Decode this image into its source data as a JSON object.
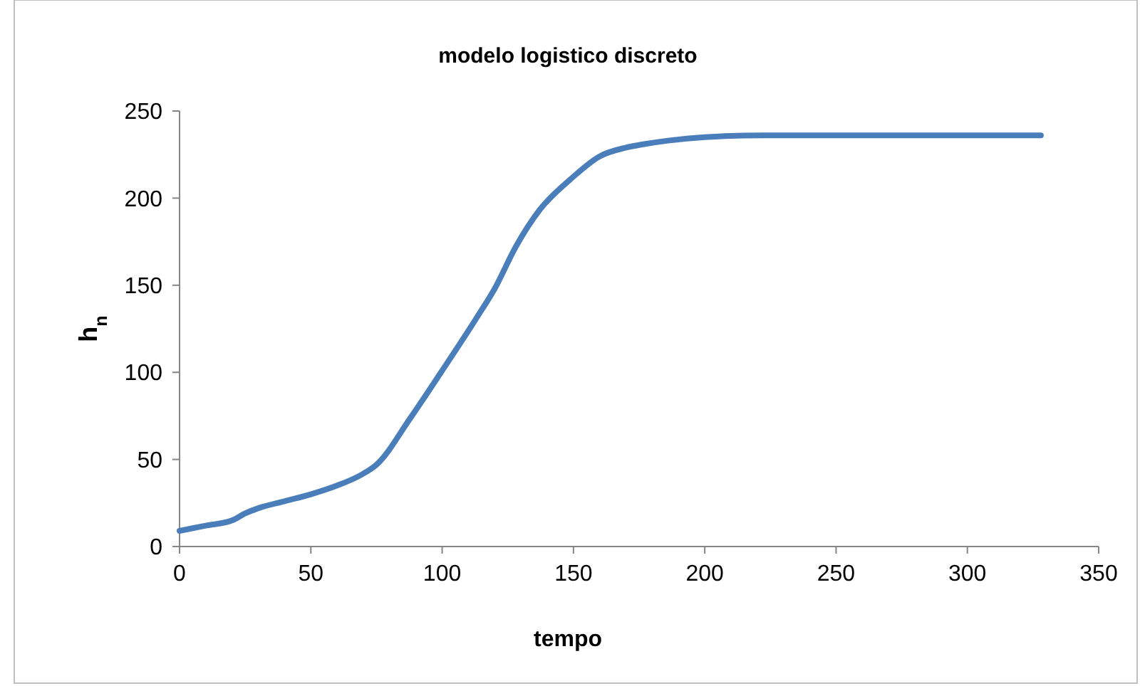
{
  "chart_data": {
    "type": "line",
    "title": "modelo logistico discreto",
    "xlabel": "tempo",
    "ylabel": "h$_{n}$",
    "x": [
      0,
      10,
      20,
      25,
      30,
      40,
      50,
      60,
      69,
      75,
      88,
      100,
      113,
      120,
      128,
      137,
      149,
      160,
      170,
      177,
      186,
      200,
      222,
      250,
      290,
      328
    ],
    "series": [
      {
        "color": "#4a7ebb",
        "values": [
          9,
          12,
          15,
          19,
          22,
          26,
          30,
          35,
          41,
          47,
          74,
          101,
          131,
          148,
          172,
          193,
          211,
          224,
          229,
          231,
          233,
          235,
          236,
          236,
          236,
          236
        ]
      }
    ],
    "xlim": [
      0,
      350
    ],
    "xticks": [
      0,
      50,
      100,
      150,
      200,
      250,
      300,
      350
    ],
    "ylim": [
      0,
      250
    ],
    "yticks": [
      0,
      50,
      100,
      150,
      200,
      250
    ],
    "grid": false,
    "marker": "none",
    "line_style": "solid"
  }
}
